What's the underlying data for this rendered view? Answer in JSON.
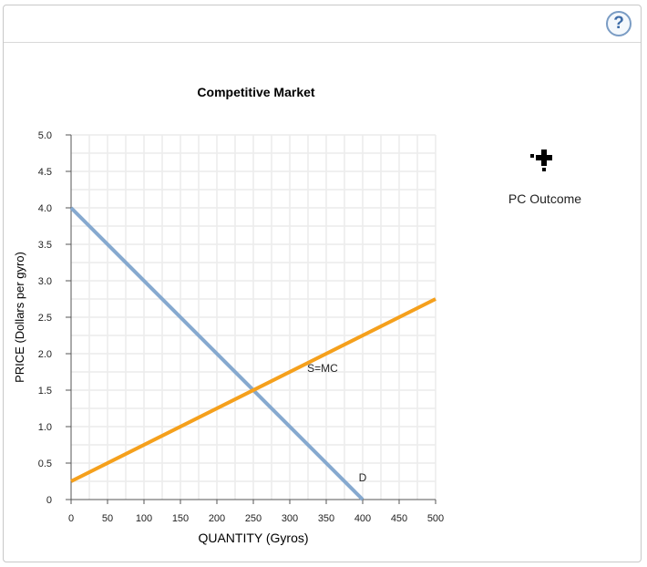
{
  "help": {
    "label": "?"
  },
  "tools": [
    {
      "label": "PC Outcome",
      "icon": "crosshair-point-icon"
    }
  ],
  "chart_data": {
    "type": "line",
    "title": "Competitive Market",
    "xlabel": "QUANTITY (Gyros)",
    "ylabel": "PRICE (Dollars per gyro)",
    "xlim": [
      0,
      500
    ],
    "ylim": [
      0,
      5
    ],
    "xticks": [
      0,
      50,
      100,
      150,
      200,
      250,
      300,
      350,
      400,
      450,
      500
    ],
    "yticks": [
      0,
      0.5,
      1,
      1.5,
      2,
      2.5,
      3,
      3.5,
      4,
      4.5,
      5
    ],
    "xtick_labels": [
      "0",
      "50",
      "100",
      "150",
      "200",
      "250",
      "300",
      "350",
      "400",
      "450",
      "500"
    ],
    "ytick_labels": [
      "0",
      "0.5",
      "1.0",
      "1.5",
      "2.0",
      "2.5",
      "3.0",
      "3.5",
      "4.0",
      "4.5",
      "5.0"
    ],
    "grid": true,
    "minor_grid_step": 25,
    "series": [
      {
        "name": "D",
        "color": "#86a9cf",
        "points": [
          [
            0,
            4
          ],
          [
            400,
            0
          ]
        ],
        "label_at": [
          400,
          0.25
        ]
      },
      {
        "name": "S=MC",
        "color": "#f5a01c",
        "points": [
          [
            0,
            0.25
          ],
          [
            500,
            2.75
          ]
        ],
        "label_at": [
          345,
          1.75
        ]
      }
    ]
  }
}
